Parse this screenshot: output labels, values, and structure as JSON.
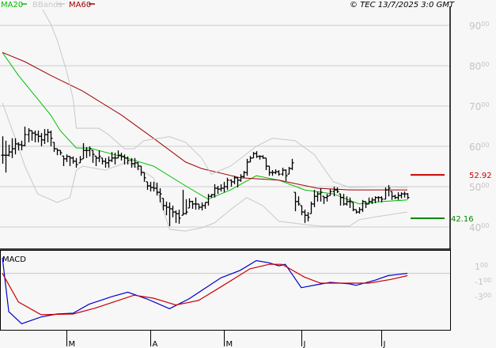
{
  "header": {
    "legend": [
      {
        "label": "MA20",
        "color": "#00c000"
      },
      {
        "label": "BBands",
        "color": "#c8c8c8"
      },
      {
        "label": "MA60",
        "color": "#a00000"
      }
    ],
    "copyright": "© TEC 13/7/2025 3:0 GMT"
  },
  "chart_data": [
    {
      "type": "ohlc",
      "ylim": [
        34.5,
        96.3
      ],
      "grid": true,
      "y_ticks": [
        "40.00",
        "50.00",
        "60.00",
        "70.00",
        "80.00",
        "90.00"
      ],
      "y_tick_values": [
        40,
        50,
        60,
        70,
        80,
        90
      ],
      "x_ticks": [
        {
          "label": "M",
          "bar": 20
        },
        {
          "label": "A",
          "bar": 46
        },
        {
          "label": "M",
          "bar": 69
        },
        {
          "label": "J",
          "bar": 93
        },
        {
          "label": "J",
          "bar": 118
        }
      ],
      "bars_hlc": [
        [
          62.5,
          55.7,
          57.8
        ],
        [
          61.4,
          53.5,
          57.8
        ],
        [
          60.4,
          57.5,
          58.6
        ],
        [
          62.0,
          57.1,
          59.4
        ],
        [
          62.0,
          58.0,
          60.6
        ],
        [
          61.0,
          59.0,
          60.4
        ],
        [
          61.4,
          59.0,
          60.2
        ],
        [
          64.9,
          60.0,
          62.9
        ],
        [
          64.5,
          61.0,
          63.9
        ],
        [
          63.9,
          61.4,
          63.3
        ],
        [
          63.9,
          61.0,
          62.9
        ],
        [
          63.9,
          61.0,
          62.5
        ],
        [
          63.3,
          60.0,
          61.6
        ],
        [
          64.3,
          60.6,
          62.9
        ],
        [
          64.3,
          61.0,
          63.5
        ],
        [
          63.9,
          60.0,
          62.0
        ],
        [
          61.0,
          58.6,
          59.4
        ],
        [
          59.4,
          57.8,
          59.0
        ],
        [
          59.0,
          57.8,
          58.4
        ],
        [
          57.6,
          55.1,
          56.9
        ],
        [
          58.0,
          56.1,
          57.5
        ],
        [
          57.6,
          55.1,
          57.1
        ],
        [
          57.5,
          55.7,
          56.3
        ],
        [
          57.1,
          54.7,
          55.5
        ],
        [
          57.6,
          55.9,
          56.7
        ],
        [
          60.8,
          56.9,
          59.0
        ],
        [
          59.8,
          57.1,
          59.0
        ],
        [
          60.0,
          57.5,
          59.4
        ],
        [
          59.0,
          55.9,
          58.0
        ],
        [
          57.6,
          55.1,
          57.1
        ],
        [
          59.0,
          56.1,
          57.5
        ],
        [
          57.1,
          55.5,
          56.3
        ],
        [
          57.1,
          54.7,
          55.9
        ],
        [
          57.5,
          54.7,
          56.5
        ],
        [
          58.6,
          56.1,
          57.1
        ],
        [
          58.4,
          55.5,
          57.1
        ],
        [
          59.0,
          57.1,
          57.8
        ],
        [
          58.4,
          56.5,
          57.5
        ],
        [
          58.0,
          55.5,
          57.1
        ],
        [
          57.5,
          55.5,
          56.5
        ],
        [
          57.1,
          54.7,
          55.7
        ],
        [
          57.1,
          54.7,
          55.9
        ],
        [
          56.1,
          54.1,
          55.1
        ],
        [
          55.1,
          52.7,
          53.5
        ],
        [
          53.5,
          51.2,
          52.2
        ],
        [
          51.2,
          49.2,
          50.2
        ],
        [
          51.2,
          48.8,
          49.8
        ],
        [
          51.2,
          48.8,
          49.6
        ],
        [
          51.0,
          47.8,
          48.6
        ],
        [
          49.6,
          46.1,
          48.2
        ],
        [
          47.1,
          44.1,
          45.3
        ],
        [
          46.3,
          42.9,
          44.9
        ],
        [
          46.1,
          40.2,
          44.5
        ],
        [
          45.3,
          42.4,
          43.7
        ],
        [
          44.1,
          41.0,
          43.3
        ],
        [
          44.3,
          40.8,
          42.2
        ],
        [
          49.2,
          42.9,
          43.3
        ],
        [
          46.9,
          43.1,
          43.7
        ],
        [
          47.1,
          44.7,
          46.3
        ],
        [
          46.5,
          44.5,
          45.7
        ],
        [
          47.3,
          44.3,
          45.7
        ],
        [
          45.7,
          44.3,
          44.9
        ],
        [
          46.1,
          44.1,
          45.3
        ],
        [
          46.1,
          44.5,
          46.1
        ],
        [
          48.2,
          45.3,
          47.6
        ],
        [
          48.2,
          47.3,
          48.0
        ],
        [
          50.6,
          47.3,
          49.6
        ],
        [
          50.2,
          48.2,
          49.4
        ],
        [
          50.6,
          48.8,
          49.6
        ],
        [
          51.2,
          48.6,
          50.0
        ],
        [
          52.2,
          49.2,
          51.6
        ],
        [
          51.8,
          50.0,
          51.2
        ],
        [
          52.7,
          50.6,
          52.2
        ],
        [
          52.4,
          49.8,
          51.6
        ],
        [
          53.1,
          51.2,
          52.5
        ],
        [
          53.9,
          52.2,
          53.5
        ],
        [
          56.9,
          52.7,
          56.1
        ],
        [
          57.6,
          56.1,
          57.1
        ],
        [
          58.6,
          57.1,
          58.2
        ],
        [
          58.8,
          57.1,
          57.5
        ],
        [
          57.8,
          56.7,
          57.5
        ],
        [
          57.8,
          56.9,
          57.1
        ],
        [
          57.1,
          54.1,
          55.1
        ],
        [
          55.1,
          52.7,
          53.5
        ],
        [
          54.1,
          52.7,
          53.5
        ],
        [
          54.3,
          53.1,
          53.7
        ],
        [
          54.1,
          52.7,
          53.1
        ],
        [
          54.7,
          52.7,
          54.1
        ],
        [
          54.3,
          51.4,
          52.7
        ],
        [
          54.9,
          53.1,
          54.5
        ],
        [
          56.9,
          54.1,
          55.9
        ],
        [
          48.6,
          43.9,
          46.3
        ],
        [
          47.6,
          45.3,
          45.7
        ],
        [
          45.3,
          42.9,
          43.7
        ],
        [
          44.3,
          41.0,
          42.9
        ],
        [
          43.7,
          41.4,
          42.4
        ],
        [
          46.3,
          43.3,
          45.7
        ],
        [
          49.2,
          44.9,
          47.6
        ],
        [
          48.8,
          46.3,
          48.2
        ],
        [
          49.6,
          46.3,
          48.6
        ],
        [
          47.6,
          45.7,
          47.3
        ],
        [
          48.2,
          46.3,
          47.6
        ],
        [
          49.4,
          47.8,
          48.8
        ],
        [
          50.0,
          47.6,
          49.2
        ],
        [
          49.8,
          48.4,
          48.8
        ],
        [
          48.2,
          45.3,
          47.3
        ],
        [
          48.2,
          45.3,
          45.7
        ],
        [
          47.6,
          45.3,
          46.3
        ],
        [
          47.3,
          44.7,
          46.3
        ],
        [
          46.1,
          43.9,
          44.3
        ],
        [
          44.3,
          43.3,
          43.7
        ],
        [
          44.9,
          43.3,
          44.3
        ],
        [
          46.7,
          43.7,
          46.3
        ],
        [
          46.3,
          44.7,
          45.7
        ],
        [
          47.3,
          45.7,
          46.3
        ],
        [
          47.3,
          45.7,
          46.7
        ],
        [
          47.6,
          45.9,
          47.3
        ],
        [
          47.6,
          46.3,
          47.3
        ],
        [
          47.6,
          46.1,
          46.9
        ],
        [
          49.8,
          46.9,
          49.2
        ],
        [
          50.4,
          47.6,
          49.6
        ],
        [
          48.8,
          46.7,
          47.6
        ],
        [
          48.0,
          46.9,
          47.3
        ],
        [
          48.6,
          46.7,
          47.8
        ],
        [
          48.6,
          47.1,
          48.2
        ],
        [
          48.8,
          47.3,
          48.2
        ],
        [
          48.4,
          46.9,
          47.3
        ]
      ],
      "overlays": [
        {
          "name": "MA20",
          "color": "#00c000",
          "bars": [
            0,
            5,
            10,
            15,
            18,
            23,
            27,
            37,
            47,
            57,
            64,
            71,
            79,
            86,
            94,
            103,
            111,
            118,
            126
          ],
          "values": [
            83.3,
            77.6,
            72.7,
            67.8,
            63.9,
            59.6,
            59.6,
            57.5,
            55.1,
            50.2,
            46.9,
            49.2,
            52.7,
            51.6,
            49.2,
            48.2,
            45.7,
            46.3,
            46.7
          ]
        },
        {
          "name": "MA60",
          "color": "#a00000",
          "bars": [
            0,
            7,
            15,
            25,
            37,
            47,
            57,
            62,
            74,
            86,
            98,
            108,
            126
          ],
          "values": [
            83.3,
            81.0,
            77.6,
            73.7,
            67.8,
            62.0,
            56.1,
            54.5,
            52.2,
            51.6,
            49.6,
            49.2,
            49.2
          ]
        },
        {
          "name": "BBands upper",
          "color": "#c8c8c8",
          "bars": [
            12,
            15,
            17,
            20,
            22,
            23,
            30,
            33,
            38,
            41,
            44,
            52,
            57,
            62,
            65,
            71,
            79,
            84,
            91,
            97,
            103,
            108,
            118,
            126
          ],
          "values": [
            94.7,
            90.4,
            86.5,
            78.6,
            71.8,
            64.5,
            64.5,
            62.9,
            59.4,
            59.4,
            61.4,
            62.4,
            61.0,
            57.1,
            53.1,
            55.1,
            60.0,
            62.0,
            61.4,
            58.0,
            51.2,
            49.8,
            50.0,
            49.8
          ]
        },
        {
          "name": "BBands lower",
          "color": "#c8c8c8",
          "bars": [
            0,
            4,
            7,
            11,
            17,
            21,
            23,
            25,
            32,
            39,
            47,
            52,
            57,
            62,
            66,
            71,
            76,
            81,
            86,
            94,
            99,
            108,
            111,
            116,
            126
          ],
          "values": [
            70.8,
            62.0,
            55.1,
            48.2,
            46.1,
            47.3,
            54.1,
            55.1,
            54.1,
            56.1,
            52.2,
            39.4,
            39.0,
            39.8,
            41.0,
            44.3,
            47.3,
            45.3,
            41.4,
            40.6,
            40.2,
            40.2,
            41.8,
            42.5,
            43.7
          ]
        }
      ],
      "levels": [
        {
          "label": "52.92",
          "value": 52.92,
          "color": "#cc0000"
        },
        {
          "label": "42.16",
          "value": 42.16,
          "color": "#008800"
        }
      ]
    },
    {
      "type": "line",
      "title": "MACD",
      "ylim": [
        -7.4,
        2.8
      ],
      "zero_line": 0,
      "y_ticks": [
        "1.00",
        "-1.00",
        "-3.00"
      ],
      "y_tick_values": [
        1,
        -1,
        -3
      ],
      "series": [
        {
          "color": "#0000cc",
          "bars": [
            0,
            2,
            6,
            12,
            17,
            22,
            27,
            34,
            39,
            45,
            52,
            58,
            63,
            68,
            74,
            79,
            83,
            86,
            88,
            93,
            98,
            102,
            108,
            110,
            116,
            120,
            126
          ],
          "values": [
            2.1,
            -5.1,
            -6.7,
            -5.8,
            -5.4,
            -5.3,
            -4.1,
            -3.1,
            -2.5,
            -3.4,
            -4.7,
            -3.4,
            -2.0,
            -0.6,
            0.4,
            1.7,
            1.4,
            1.0,
            1.2,
            -1.9,
            -1.5,
            -1.2,
            -1.4,
            -1.6,
            -0.9,
            -0.3,
            0.0
          ]
        },
        {
          "color": "#cc0000",
          "bars": [
            0,
            5,
            12,
            22,
            29,
            41,
            47,
            54,
            61,
            68,
            77,
            83,
            87,
            94,
            99,
            108,
            114,
            121,
            126
          ],
          "values": [
            0.0,
            -3.8,
            -5.5,
            -5.4,
            -4.6,
            -2.9,
            -3.3,
            -4.2,
            -3.6,
            -1.8,
            0.6,
            1.2,
            1.2,
            -0.5,
            -1.3,
            -1.3,
            -1.3,
            -0.8,
            -0.3
          ]
        }
      ]
    }
  ]
}
